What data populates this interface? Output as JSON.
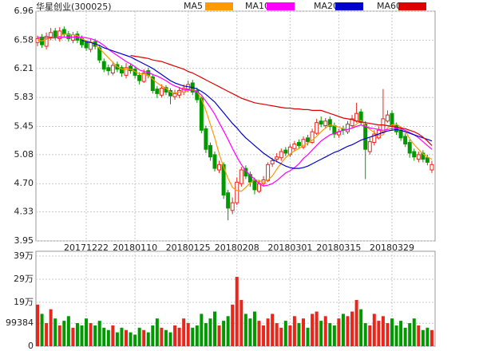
{
  "chart_data": {
    "type": "candlestick",
    "title": "华星创业(300025)",
    "categories": [
      null,
      null,
      null,
      null,
      null,
      null,
      null,
      null,
      null,
      null,
      null,
      "20171222",
      null,
      null,
      null,
      null,
      null,
      null,
      null,
      null,
      null,
      null,
      "20180110",
      null,
      null,
      null,
      null,
      null,
      null,
      null,
      null,
      null,
      null,
      null,
      "20180125",
      null,
      null,
      null,
      null,
      null,
      null,
      null,
      null,
      null,
      null,
      "20180208",
      null,
      null,
      null,
      null,
      null,
      null,
      null,
      null,
      null,
      null,
      null,
      "20180301",
      null,
      null,
      null,
      null,
      null,
      null,
      null,
      null,
      null,
      null,
      "20180315",
      null,
      null,
      null,
      null,
      null,
      null,
      null,
      null,
      null,
      null,
      null,
      "20180329",
      null,
      null,
      null,
      null,
      null,
      null,
      null,
      null,
      null
    ],
    "ohlc": [
      [
        6.55,
        6.64,
        6.5,
        6.6
      ],
      [
        6.62,
        6.66,
        6.48,
        6.52
      ],
      [
        6.5,
        6.68,
        6.46,
        6.63
      ],
      [
        6.62,
        6.74,
        6.58,
        6.68
      ],
      [
        6.7,
        6.74,
        6.58,
        6.62
      ],
      [
        6.6,
        6.75,
        6.56,
        6.7
      ],
      [
        6.72,
        6.76,
        6.62,
        6.66
      ],
      [
        6.66,
        6.7,
        6.56,
        6.6
      ],
      [
        6.58,
        6.69,
        6.54,
        6.65
      ],
      [
        6.66,
        6.7,
        6.54,
        6.58
      ],
      [
        6.6,
        6.64,
        6.48,
        6.52
      ],
      [
        6.55,
        6.58,
        6.44,
        6.48
      ],
      [
        6.46,
        6.6,
        6.42,
        6.55
      ],
      [
        6.56,
        6.6,
        6.46,
        6.5
      ],
      [
        6.48,
        6.52,
        6.28,
        6.32
      ],
      [
        6.3,
        6.34,
        6.16,
        6.2
      ],
      [
        6.22,
        6.26,
        6.12,
        6.18
      ],
      [
        6.15,
        6.3,
        6.12,
        6.25
      ],
      [
        6.26,
        6.3,
        6.16,
        6.2
      ],
      [
        6.22,
        6.25,
        6.1,
        6.15
      ],
      [
        6.12,
        6.28,
        6.08,
        6.22
      ],
      [
        6.24,
        6.27,
        6.14,
        6.18
      ],
      [
        6.2,
        6.24,
        6.08,
        6.12
      ],
      [
        6.12,
        6.16,
        6.0,
        6.05
      ],
      [
        6.04,
        6.2,
        6.02,
        6.15
      ],
      [
        6.18,
        6.22,
        6.08,
        6.12
      ],
      [
        6.1,
        6.14,
        5.88,
        5.92
      ],
      [
        5.94,
        5.98,
        5.82,
        5.88
      ],
      [
        5.86,
        6.0,
        5.83,
        5.95
      ],
      [
        5.96,
        5.99,
        5.86,
        5.9
      ],
      [
        5.92,
        5.95,
        5.74,
        5.85
      ],
      [
        5.84,
        5.93,
        5.8,
        5.88
      ],
      [
        5.86,
        5.96,
        5.82,
        5.92
      ],
      [
        5.9,
        6.0,
        5.86,
        5.95
      ],
      [
        5.94,
        6.05,
        5.9,
        6.0
      ],
      [
        6.02,
        6.06,
        5.86,
        5.9
      ],
      [
        5.92,
        5.96,
        5.76,
        5.8
      ],
      [
        5.82,
        5.84,
        5.36,
        5.4
      ],
      [
        5.42,
        5.46,
        5.1,
        5.15
      ],
      [
        5.2,
        5.24,
        5.0,
        5.05
      ],
      [
        5.08,
        5.12,
        4.86,
        4.9
      ],
      [
        4.88,
        5.0,
        4.84,
        4.95
      ],
      [
        4.95,
        4.98,
        4.5,
        4.55
      ],
      [
        4.58,
        4.62,
        4.22,
        4.38
      ],
      [
        4.35,
        4.52,
        4.3,
        4.45
      ],
      [
        4.45,
        4.78,
        4.42,
        4.72
      ],
      [
        4.7,
        4.92,
        4.66,
        4.88
      ],
      [
        4.9,
        4.94,
        4.76,
        4.8
      ],
      [
        4.82,
        4.86,
        4.66,
        4.72
      ],
      [
        4.75,
        4.78,
        4.56,
        4.62
      ],
      [
        4.6,
        4.75,
        4.58,
        4.7
      ],
      [
        4.7,
        4.8,
        4.66,
        4.75
      ],
      [
        4.74,
        4.98,
        4.72,
        4.95
      ],
      [
        4.96,
        5.04,
        4.92,
        5.0
      ],
      [
        5.02,
        5.1,
        4.98,
        5.05
      ],
      [
        5.04,
        5.16,
        5.0,
        5.12
      ],
      [
        5.14,
        5.18,
        5.06,
        5.1
      ],
      [
        5.08,
        5.22,
        5.05,
        5.18
      ],
      [
        5.16,
        5.26,
        5.12,
        5.22
      ],
      [
        5.24,
        5.28,
        5.16,
        5.2
      ],
      [
        5.18,
        5.32,
        5.15,
        5.28
      ],
      [
        5.3,
        5.34,
        5.2,
        5.25
      ],
      [
        5.24,
        5.42,
        5.22,
        5.38
      ],
      [
        5.36,
        5.55,
        5.34,
        5.5
      ],
      [
        5.52,
        5.58,
        5.44,
        5.48
      ],
      [
        5.46,
        5.56,
        5.42,
        5.52
      ],
      [
        5.54,
        5.58,
        5.4,
        5.45
      ],
      [
        5.46,
        5.5,
        5.3,
        5.35
      ],
      [
        5.34,
        5.42,
        5.3,
        5.38
      ],
      [
        5.42,
        5.46,
        5.34,
        5.4
      ],
      [
        5.38,
        5.52,
        5.35,
        5.48
      ],
      [
        5.46,
        5.6,
        5.44,
        5.55
      ],
      [
        5.52,
        5.76,
        5.5,
        5.62
      ],
      [
        5.64,
        5.68,
        5.46,
        5.5
      ],
      [
        5.48,
        5.52,
        4.76,
        5.15
      ],
      [
        5.12,
        5.3,
        5.08,
        5.25
      ],
      [
        5.24,
        5.4,
        5.2,
        5.35
      ],
      [
        5.3,
        5.45,
        5.28,
        5.4
      ],
      [
        5.38,
        5.94,
        5.36,
        5.55
      ],
      [
        5.52,
        5.66,
        5.5,
        5.6
      ],
      [
        5.62,
        5.66,
        5.4,
        5.45
      ],
      [
        5.46,
        5.5,
        5.34,
        5.38
      ],
      [
        5.4,
        5.44,
        5.26,
        5.3
      ],
      [
        5.32,
        5.36,
        5.18,
        5.22
      ],
      [
        5.24,
        5.28,
        5.04,
        5.1
      ],
      [
        5.12,
        5.16,
        5.0,
        5.05
      ],
      [
        5.02,
        5.12,
        4.98,
        5.08
      ],
      [
        5.1,
        5.14,
        4.98,
        5.02
      ],
      [
        5.04,
        5.08,
        4.94,
        4.98
      ],
      [
        4.88,
        5.0,
        4.84,
        4.95
      ]
    ],
    "up_color": "#e8261c",
    "down_color": "#009a00",
    "series": [
      {
        "name": "MA5",
        "color": "#ff9900",
        "values": [
          6.58,
          6.57,
          6.59,
          6.61,
          6.61,
          6.63,
          6.66,
          6.65,
          6.65,
          6.64,
          6.6,
          6.57,
          6.56,
          6.53,
          6.47,
          6.41,
          6.35,
          6.29,
          6.23,
          6.2,
          6.2,
          6.2,
          6.17,
          6.14,
          6.14,
          6.12,
          6.07,
          6.02,
          5.98,
          5.95,
          5.9,
          5.89,
          5.9,
          5.9,
          5.92,
          5.93,
          5.91,
          5.81,
          5.66,
          5.48,
          5.3,
          5.09,
          4.92,
          4.77,
          4.65,
          4.61,
          4.6,
          4.65,
          4.71,
          4.75,
          4.74,
          4.72,
          4.75,
          4.8,
          4.89,
          4.97,
          5.04,
          5.09,
          5.13,
          5.16,
          5.2,
          5.23,
          5.27,
          5.32,
          5.38,
          5.43,
          5.47,
          5.46,
          5.44,
          5.42,
          5.41,
          5.43,
          5.48,
          5.53,
          5.46,
          5.41,
          5.37,
          5.33,
          5.34,
          5.43,
          5.47,
          5.48,
          5.44,
          5.39,
          5.29,
          5.21,
          5.15,
          5.09,
          5.05,
          5.02
        ]
      },
      {
        "name": "MA10",
        "color": "#ff00ff",
        "values": [
          6.62,
          6.61,
          6.61,
          6.61,
          6.61,
          6.62,
          6.62,
          6.62,
          6.62,
          6.62,
          6.62,
          6.61,
          6.6,
          6.58,
          6.55,
          6.51,
          6.46,
          6.42,
          6.38,
          6.34,
          6.3,
          6.27,
          6.23,
          6.19,
          6.17,
          6.16,
          6.13,
          6.11,
          6.08,
          6.05,
          6.01,
          5.98,
          5.96,
          5.93,
          5.93,
          5.92,
          5.91,
          5.86,
          5.78,
          5.7,
          5.61,
          5.5,
          5.39,
          5.28,
          5.16,
          5.05,
          4.95,
          4.87,
          4.81,
          4.76,
          4.7,
          4.67,
          4.68,
          4.7,
          4.74,
          4.79,
          4.84,
          4.87,
          4.91,
          4.96,
          5.03,
          5.08,
          5.14,
          5.2,
          5.26,
          5.3,
          5.34,
          5.36,
          5.38,
          5.4,
          5.41,
          5.43,
          5.45,
          5.47,
          5.45,
          5.43,
          5.42,
          5.41,
          5.4,
          5.41,
          5.42,
          5.43,
          5.42,
          5.4,
          5.37,
          5.34,
          5.3,
          5.25,
          5.2,
          5.15
        ]
      },
      {
        "name": "MA20",
        "color": "#0000cc",
        "values": [
          null,
          null,
          null,
          null,
          null,
          null,
          null,
          null,
          null,
          null,
          6.58,
          6.56,
          6.55,
          6.53,
          6.51,
          6.48,
          6.46,
          6.44,
          6.42,
          6.4,
          6.38,
          6.36,
          6.33,
          6.3,
          6.27,
          6.24,
          6.21,
          6.17,
          6.13,
          6.09,
          6.05,
          6.02,
          6.0,
          5.98,
          5.97,
          5.96,
          5.94,
          5.91,
          5.87,
          5.82,
          5.77,
          5.7,
          5.63,
          5.56,
          5.49,
          5.43,
          5.36,
          5.3,
          5.25,
          5.2,
          5.15,
          5.1,
          5.06,
          5.02,
          4.99,
          4.96,
          4.93,
          4.91,
          4.9,
          4.9,
          4.91,
          4.93,
          4.96,
          4.99,
          5.02,
          5.05,
          5.08,
          5.11,
          5.13,
          5.16,
          5.19,
          5.21,
          5.24,
          5.27,
          5.29,
          5.31,
          5.33,
          5.35,
          5.37,
          5.39,
          5.4,
          5.41,
          5.4,
          5.38,
          5.36,
          5.34,
          5.32,
          5.3,
          5.28,
          5.26
        ]
      },
      {
        "name": "MA60",
        "color": "#dd0000",
        "values": [
          null,
          null,
          null,
          null,
          null,
          null,
          null,
          null,
          null,
          null,
          null,
          null,
          null,
          null,
          null,
          null,
          null,
          null,
          null,
          null,
          null,
          6.38,
          6.37,
          6.36,
          6.35,
          6.34,
          6.32,
          6.31,
          6.3,
          6.28,
          6.26,
          6.24,
          6.22,
          6.2,
          6.17,
          6.15,
          6.12,
          6.09,
          6.06,
          6.03,
          6.0,
          5.97,
          5.94,
          5.91,
          5.88,
          5.85,
          5.82,
          5.8,
          5.78,
          5.76,
          5.75,
          5.74,
          5.73,
          5.72,
          5.71,
          5.7,
          5.69,
          5.69,
          5.68,
          5.68,
          5.67,
          5.67,
          5.66,
          5.66,
          5.66,
          5.64,
          5.62,
          5.6,
          5.58,
          5.56,
          5.55,
          5.54,
          5.52,
          5.51,
          5.5,
          5.49,
          5.48,
          5.47,
          5.47,
          5.46,
          5.45,
          5.44,
          5.43,
          5.42,
          5.4,
          5.38,
          5.35,
          5.31,
          5.26,
          5.2
        ]
      }
    ],
    "ylim": [
      3.95,
      6.96
    ],
    "yticks": [
      3.95,
      4.33,
      {
        "value": 4.7,
        "label": "4.70"
      },
      5.08,
      5.45,
      5.83,
      6.21,
      6.58,
      6.96
    ],
    "grid": true,
    "volume": {
      "values": [
        180000,
        140000,
        100000,
        160000,
        120000,
        90000,
        110000,
        130000,
        80000,
        100000,
        90000,
        120000,
        100000,
        90000,
        110000,
        80000,
        70000,
        90000,
        60000,
        80000,
        70000,
        60000,
        50000,
        80000,
        70000,
        60000,
        90000,
        120000,
        80000,
        70000,
        60000,
        90000,
        80000,
        120000,
        100000,
        80000,
        90000,
        140000,
        100000,
        120000,
        150000,
        90000,
        110000,
        130000,
        180000,
        300000,
        200000,
        140000,
        120000,
        150000,
        110000,
        90000,
        120000,
        140000,
        100000,
        80000,
        110000,
        90000,
        130000,
        100000,
        120000,
        80000,
        140000,
        150000,
        110000,
        130000,
        100000,
        90000,
        120000,
        140000,
        130000,
        150000,
        200000,
        160000,
        100000,
        90000,
        140000,
        110000,
        130000,
        100000,
        120000,
        90000,
        110000,
        80000,
        100000,
        120000,
        90000,
        70000,
        80000,
        70000
      ],
      "ylim": [
        0,
        390000
      ],
      "yticks": [
        0,
        99384,
        {
          "value": 190000,
          "label": "19万"
        },
        {
          "value": 290000,
          "label": "29万"
        },
        {
          "value": 390000,
          "label": "39万"
        }
      ]
    }
  }
}
